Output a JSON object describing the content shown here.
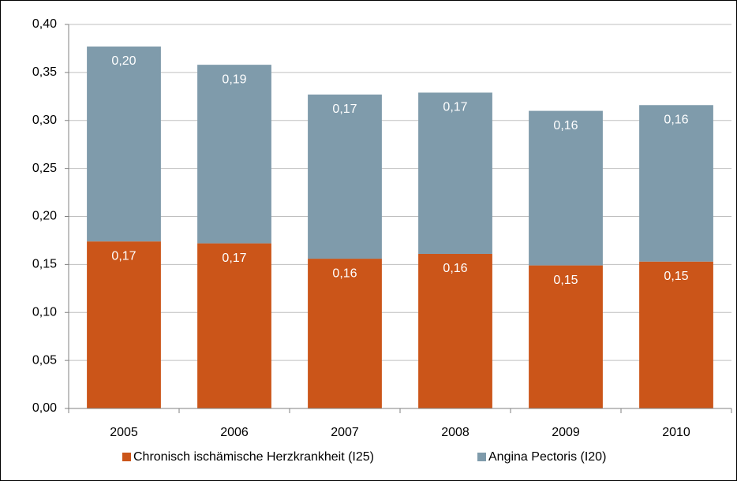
{
  "chart_data": {
    "type": "stacked-bar",
    "categories": [
      "2005",
      "2006",
      "2007",
      "2008",
      "2009",
      "2010"
    ],
    "series": [
      {
        "name": "Chronisch ischämische Herzkrankheit (I25)",
        "color": "#cb5519",
        "values": [
          0.174,
          0.172,
          0.156,
          0.161,
          0.149,
          0.153
        ],
        "value_labels": [
          "0,17",
          "0,17",
          "0,16",
          "0,16",
          "0,15",
          "0,15"
        ]
      },
      {
        "name": "Angina Pectoris (I20)",
        "color": "#7f9bab",
        "values": [
          0.203,
          0.186,
          0.171,
          0.168,
          0.161,
          0.163
        ],
        "value_labels": [
          "0,20",
          "0,19",
          "0,17",
          "0,17",
          "0,16",
          "0,16"
        ]
      }
    ],
    "ylim": [
      0,
      0.4
    ],
    "yticks": [
      {
        "value": 0,
        "label": "0,00"
      },
      {
        "value": 0.05,
        "label": "0,05"
      },
      {
        "value": 0.1,
        "label": "0,10"
      },
      {
        "value": 0.15,
        "label": "0,15"
      },
      {
        "value": 0.2,
        "label": "0,20"
      },
      {
        "value": 0.25,
        "label": "0,25"
      },
      {
        "value": 0.3,
        "label": "0,30"
      },
      {
        "value": 0.35,
        "label": "0,35"
      },
      {
        "value": 0.4,
        "label": "0,40"
      }
    ],
    "grid": true,
    "legend": "bottom"
  }
}
